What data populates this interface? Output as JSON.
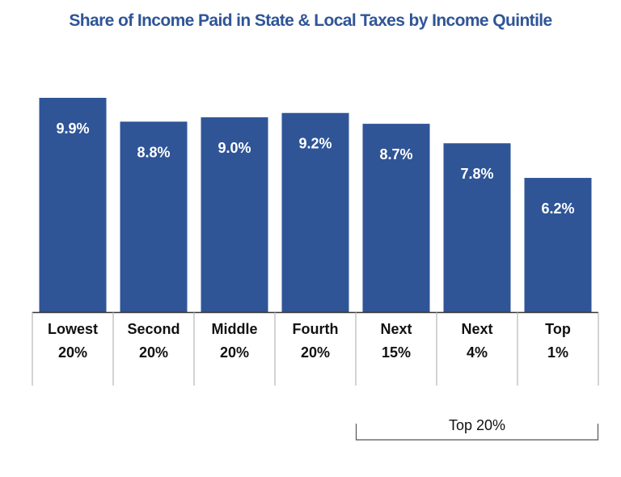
{
  "chart_data": {
    "type": "bar",
    "title": "Share of Income Paid in State & Local Taxes by Income Quintile",
    "categories": [
      [
        "Lowest",
        "20%"
      ],
      [
        "Second",
        "20%"
      ],
      [
        "Middle",
        "20%"
      ],
      [
        "Fourth",
        "20%"
      ],
      [
        "Next",
        "15%"
      ],
      [
        "Next",
        "4%"
      ],
      [
        "Top",
        "1%"
      ]
    ],
    "values": [
      9.9,
      8.8,
      9.0,
      9.2,
      8.7,
      7.8,
      6.2
    ],
    "value_labels": [
      "9.9%",
      "8.8%",
      "9.0%",
      "9.2%",
      "8.7%",
      "7.8%",
      "6.2%"
    ],
    "ylim": [
      0,
      9.9
    ],
    "grid": false,
    "colors": {
      "bar": "#2f5597",
      "title": "#2f5597",
      "axis": "#333333",
      "divider": "#aaaaaa"
    },
    "group_annotation": {
      "label": "Top 20%",
      "from_category": 4,
      "to_category": 6
    }
  }
}
